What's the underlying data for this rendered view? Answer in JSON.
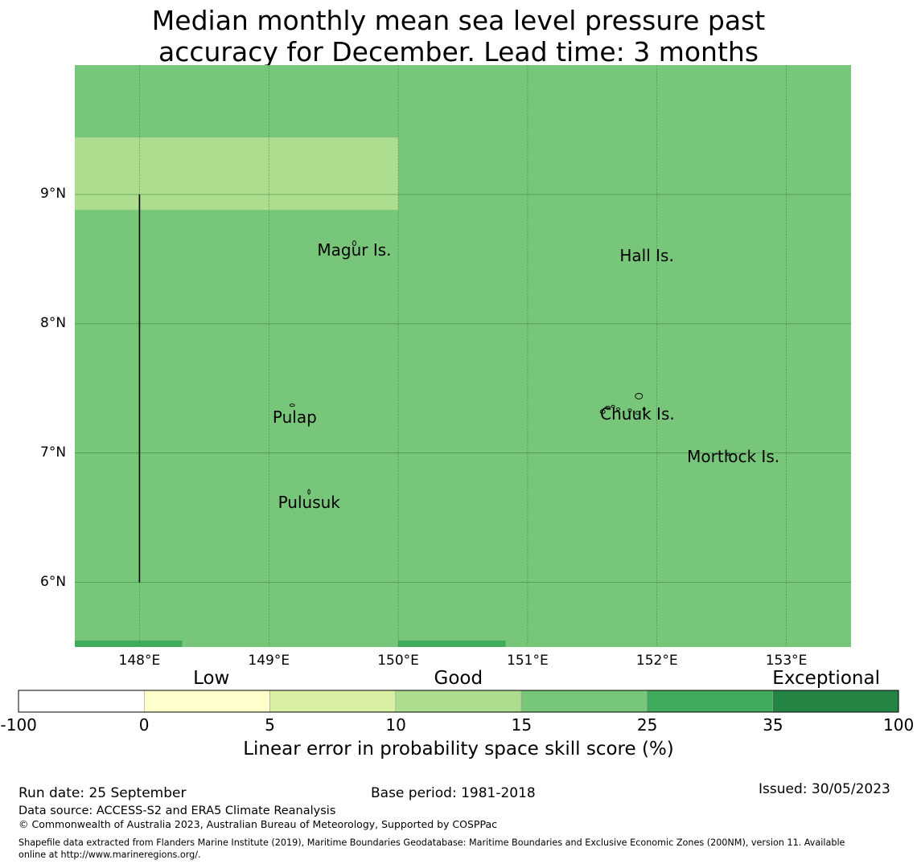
{
  "title": {
    "line1": "Median monthly mean sea level pressure past",
    "line2": "accuracy for December. Lead time: 3 months"
  },
  "map": {
    "extent": {
      "lon_min": 147.5,
      "lon_max": 153.5,
      "lat_min": 5.5,
      "lat_max": 10.0
    },
    "lon_ticks": [
      148,
      149,
      150,
      151,
      152,
      153
    ],
    "lon_labels": [
      "148°E",
      "149°E",
      "150°E",
      "151°E",
      "152°E",
      "153°E"
    ],
    "lat_ticks": [
      6,
      7,
      8,
      9
    ],
    "lat_labels": [
      "6°N",
      "7°N",
      "8°N",
      "9°N"
    ],
    "background_color": "#78c679",
    "cells": [
      {
        "lon_min": 147.5,
        "lon_max": 150.0,
        "lat_min": 8.88,
        "lat_max": 9.44,
        "color": "#addd8e",
        "category": "10 to 15"
      },
      {
        "lon_min": 147.5,
        "lon_max": 148.33,
        "lat_min": 5.5,
        "lat_max": 5.55,
        "color": "#41ab5d",
        "category": "25 to 35"
      },
      {
        "lon_min": 150.0,
        "lon_max": 150.83,
        "lat_min": 5.5,
        "lat_max": 5.55,
        "color": "#41ab5d",
        "category": "25 to 35"
      }
    ],
    "boundary_line": {
      "lon": 148.0,
      "lat_from": 6.0,
      "lat_to": 9.0
    },
    "places": [
      {
        "name": "Magur Is.",
        "lon": 149.66,
        "lat": 8.57
      },
      {
        "name": "Hall Is.",
        "lon": 151.92,
        "lat": 8.53
      },
      {
        "name": "Pulap",
        "lon": 149.2,
        "lat": 7.28
      },
      {
        "name": "Chuuk Is.",
        "lon": 151.85,
        "lat": 7.3
      },
      {
        "name": "Mortlock Is.",
        "lon": 152.59,
        "lat": 6.97
      },
      {
        "name": "Pulusuk",
        "lon": 149.31,
        "lat": 6.62
      }
    ]
  },
  "colorbar": {
    "categories": [
      {
        "label": "Low",
        "position": 0.219
      },
      {
        "label": "Good",
        "position": 0.5
      },
      {
        "label": "Exceptional",
        "position": 0.918
      }
    ],
    "boundaries": [
      "-100",
      "0",
      "5",
      "10",
      "15",
      "25",
      "35",
      "100"
    ],
    "colors": [
      "#ffffff",
      "#ffffcc",
      "#d9f0a3",
      "#addd8e",
      "#78c679",
      "#41ab5d",
      "#238443"
    ],
    "label": "Linear error in probability space skill score (%)"
  },
  "footer": {
    "run_date": "Run date: 25 September",
    "base_period": "Base period: 1981-2018",
    "issued": "Issued: 30/05/2023",
    "data_source": "Data source: ACCESS-S2 and ERA5 Climate Reanalysis",
    "copyright": "© Commonwealth of Australia 2023, Australian Bureau of Meteorology, Supported by COSPPac",
    "shapefile_line1": "Shapefile data extracted from Flanders Marine Institute (2019), Maritime Boundaries Geodatabase: Maritime Boundaries and Exclusive Economic Zones (200NM), version 11. Available",
    "shapefile_line2": "online at http://www.marineregions.org/."
  }
}
